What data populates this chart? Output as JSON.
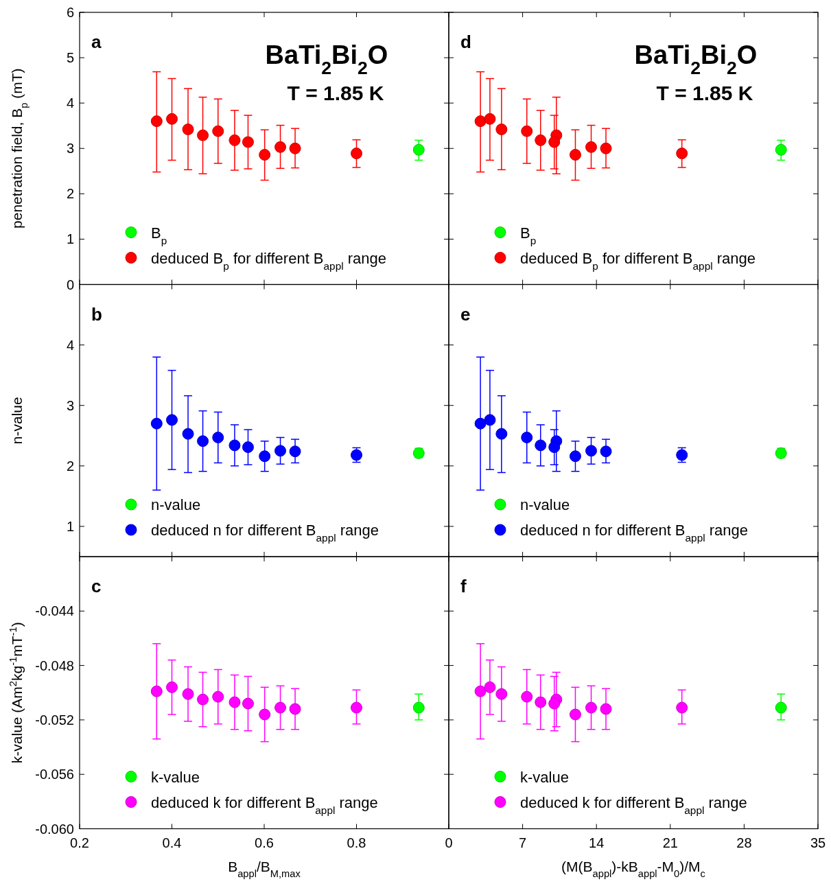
{
  "chart_data": [
    {
      "type": "scatter",
      "annotations": [
        "a",
        "BaTi$_{2}$Bi$_{2}$O",
        "T = 1.85 K"
      ],
      "ylabel": "penetration field,  B$_{p}$ (mT)",
      "xlim": [
        0.2,
        1.0
      ],
      "xticks": [
        0.2,
        0.4,
        0.6,
        0.8
      ],
      "ylim": [
        0,
        6
      ],
      "yticks": [
        0,
        1,
        2,
        3,
        4,
        5,
        6
      ],
      "tick_labels": "y",
      "legend": "bottom left",
      "marker": "circle",
      "series": [
        {
          "name": "B$_{p}$",
          "color": "#00ff00",
          "x": [
            0.935
          ],
          "values": [
            2.97
          ],
          "errors": [
            [
              2.74,
              3.18
            ]
          ]
        },
        {
          "name": "deduced B$_{p}$ for different B$_{appl}$ range",
          "color": "#ff0000",
          "x": [
            0.367,
            0.4,
            0.435,
            0.467,
            0.5,
            0.536,
            0.565,
            0.601,
            0.635,
            0.667,
            0.8
          ],
          "values": [
            3.6,
            3.65,
            3.42,
            3.29,
            3.38,
            3.18,
            3.14,
            2.86,
            3.03,
            3.0,
            2.89
          ],
          "errors": [
            [
              2.48,
              4.69
            ],
            [
              2.74,
              4.54
            ],
            [
              2.53,
              4.32
            ],
            [
              2.44,
              4.13
            ],
            [
              2.67,
              4.09
            ],
            [
              2.52,
              3.84
            ],
            [
              2.55,
              3.73
            ],
            [
              2.3,
              3.41
            ],
            [
              2.56,
              3.51
            ],
            [
              2.57,
              3.44
            ],
            [
              2.58,
              3.19
            ]
          ]
        }
      ]
    },
    {
      "type": "scatter",
      "annotations": [
        "d",
        "BaTi$_{2}$Bi$_{2}$O",
        "T = 1.85 K"
      ],
      "xlim": [
        0,
        35
      ],
      "xticks": [
        0,
        7,
        14,
        21,
        28,
        35
      ],
      "ylim": [
        0,
        6
      ],
      "yticks": [
        0,
        1,
        2,
        3,
        4,
        5,
        6
      ],
      "tick_labels": false,
      "legend": "bottom left",
      "marker": "circle",
      "series": [
        {
          "name": "B$_{p}$",
          "color": "#00ff00",
          "x": [
            31.5
          ],
          "values": [
            2.97
          ],
          "errors": [
            [
              2.74,
              3.18
            ]
          ]
        },
        {
          "name": "deduced B$_{p}$ for different B$_{appl}$ range",
          "color": "#ff0000",
          "x": [
            3.0,
            3.9,
            5.0,
            10.2,
            7.4,
            8.7,
            10.0,
            12.0,
            13.5,
            14.9,
            22.1
          ],
          "values": [
            3.6,
            3.65,
            3.42,
            3.29,
            3.38,
            3.18,
            3.14,
            2.86,
            3.03,
            3.0,
            2.89
          ],
          "errors": [
            [
              2.48,
              4.69
            ],
            [
              2.74,
              4.54
            ],
            [
              2.53,
              4.32
            ],
            [
              2.44,
              4.13
            ],
            [
              2.67,
              4.09
            ],
            [
              2.52,
              3.84
            ],
            [
              2.55,
              3.73
            ],
            [
              2.3,
              3.41
            ],
            [
              2.56,
              3.51
            ],
            [
              2.57,
              3.44
            ],
            [
              2.58,
              3.19
            ]
          ]
        }
      ]
    },
    {
      "type": "scatter",
      "annotations": [
        "b"
      ],
      "ylabel": "n-value",
      "xlim": [
        0.2,
        1.0
      ],
      "xticks": [
        0.2,
        0.4,
        0.6,
        0.8
      ],
      "ylim": [
        0.5,
        5
      ],
      "yticks": [
        1,
        2,
        3,
        4
      ],
      "tick_labels": "y",
      "legend": "bottom left",
      "marker": "circle",
      "series": [
        {
          "name": "n-value",
          "color": "#00ff00",
          "x": [
            0.935
          ],
          "values": [
            2.21
          ],
          "errors": [
            [
              2.14,
              2.29
            ]
          ]
        },
        {
          "name": "deduced n for different B$_{appl}$ range",
          "color": "#0000ff",
          "x": [
            0.367,
            0.4,
            0.435,
            0.467,
            0.5,
            0.536,
            0.565,
            0.601,
            0.635,
            0.667,
            0.8
          ],
          "values": [
            2.7,
            2.76,
            2.53,
            2.41,
            2.47,
            2.34,
            2.31,
            2.16,
            2.25,
            2.24,
            2.18
          ],
          "errors": [
            [
              1.6,
              3.8
            ],
            [
              1.94,
              3.58
            ],
            [
              1.89,
              3.16
            ],
            [
              1.91,
              2.91
            ],
            [
              2.05,
              2.89
            ],
            [
              2.0,
              2.68
            ],
            [
              2.02,
              2.6
            ],
            [
              1.91,
              2.41
            ],
            [
              2.03,
              2.47
            ],
            [
              2.05,
              2.44
            ],
            [
              2.06,
              2.3
            ]
          ]
        }
      ]
    },
    {
      "type": "scatter",
      "annotations": [
        "e"
      ],
      "xlim": [
        0,
        35
      ],
      "xticks": [
        0,
        7,
        14,
        21,
        28,
        35
      ],
      "ylim": [
        0.5,
        5
      ],
      "yticks": [
        1,
        2,
        3,
        4
      ],
      "tick_labels": false,
      "legend": "bottom left",
      "marker": "circle",
      "series": [
        {
          "name": "n-value",
          "color": "#00ff00",
          "x": [
            31.5
          ],
          "values": [
            2.21
          ],
          "errors": [
            [
              2.14,
              2.29
            ]
          ]
        },
        {
          "name": "deduced n for different B$_{appl}$ range",
          "color": "#0000ff",
          "x": [
            3.0,
            3.9,
            5.0,
            10.2,
            7.4,
            8.7,
            10.0,
            12.0,
            13.5,
            14.9,
            22.1
          ],
          "values": [
            2.7,
            2.76,
            2.53,
            2.41,
            2.47,
            2.34,
            2.31,
            2.16,
            2.25,
            2.24,
            2.18
          ],
          "errors": [
            [
              1.6,
              3.8
            ],
            [
              1.94,
              3.58
            ],
            [
              1.89,
              3.16
            ],
            [
              1.91,
              2.91
            ],
            [
              2.05,
              2.89
            ],
            [
              2.0,
              2.68
            ],
            [
              2.02,
              2.6
            ],
            [
              1.91,
              2.41
            ],
            [
              2.03,
              2.47
            ],
            [
              2.05,
              2.44
            ],
            [
              2.06,
              2.3
            ]
          ]
        }
      ]
    },
    {
      "type": "scatter",
      "annotations": [
        "c"
      ],
      "ylabel": "k-value (Am$^{2}$kg$^{-1}$mT$^{-1}$)",
      "xlabel": "B$_{appl}$/B$_{M,max}$",
      "xlim": [
        0.2,
        1.0
      ],
      "xticks": [
        0.2,
        0.4,
        0.6,
        0.8
      ],
      "ylim": [
        -0.06,
        -0.04
      ],
      "yticks": [
        {
          "value": -0.06,
          "label": "-0.060"
        },
        -0.056,
        -0.052,
        -0.048,
        -0.044
      ],
      "legend": "bottom left",
      "marker": "circle",
      "series": [
        {
          "name": "k-value",
          "color": "#00ff00",
          "x": [
            0.935
          ],
          "values": [
            -0.0511
          ],
          "errors": [
            [
              -0.052,
              -0.0501
            ]
          ]
        },
        {
          "name": "deduced k for different B$_{appl}$ range",
          "color": "#ff00ff",
          "x": [
            0.367,
            0.4,
            0.435,
            0.467,
            0.5,
            0.536,
            0.565,
            0.601,
            0.635,
            0.667,
            0.8
          ],
          "values": [
            -0.0499,
            -0.0496,
            -0.0501,
            -0.0505,
            -0.0503,
            -0.0507,
            -0.0508,
            -0.0516,
            -0.0511,
            -0.0512,
            -0.0511
          ],
          "errors": [
            [
              -0.0534,
              -0.0464
            ],
            [
              -0.0516,
              -0.0476
            ],
            [
              -0.0521,
              -0.0481
            ],
            [
              -0.0525,
              -0.0485
            ],
            [
              -0.0523,
              -0.0483
            ],
            [
              -0.0527,
              -0.0487
            ],
            [
              -0.0528,
              -0.0488
            ],
            [
              -0.0536,
              -0.0496
            ],
            [
              -0.0527,
              -0.0495
            ],
            [
              -0.0527,
              -0.0497
            ],
            [
              -0.0523,
              -0.0498
            ]
          ]
        }
      ]
    },
    {
      "type": "scatter",
      "annotations": [
        "f"
      ],
      "xlabel": "(M(B$_{appl}$)-kB$_{appl}$-M$_{0}$)/M$_{c}$",
      "xlim": [
        0,
        35
      ],
      "xticks": [
        0,
        7,
        14,
        21,
        28,
        35
      ],
      "ylim": [
        -0.06,
        -0.04
      ],
      "yticks": [
        -0.06,
        -0.056,
        -0.052,
        -0.048,
        -0.044
      ],
      "tick_labels": "x",
      "legend": "bottom left",
      "marker": "circle",
      "series": [
        {
          "name": "k-value",
          "color": "#00ff00",
          "x": [
            31.5
          ],
          "values": [
            -0.0511
          ],
          "errors": [
            [
              -0.052,
              -0.0501
            ]
          ]
        },
        {
          "name": "deduced k for different B$_{appl}$ range",
          "color": "#ff00ff",
          "x": [
            3.0,
            3.9,
            5.0,
            10.2,
            7.4,
            8.7,
            10.0,
            12.0,
            13.5,
            14.9,
            22.1
          ],
          "values": [
            -0.0499,
            -0.0496,
            -0.0501,
            -0.0505,
            -0.0503,
            -0.0507,
            -0.0508,
            -0.0516,
            -0.0511,
            -0.0512,
            -0.0511
          ],
          "errors": [
            [
              -0.0534,
              -0.0464
            ],
            [
              -0.0516,
              -0.0476
            ],
            [
              -0.0521,
              -0.0481
            ],
            [
              -0.0525,
              -0.0485
            ],
            [
              -0.0523,
              -0.0483
            ],
            [
              -0.0527,
              -0.0487
            ],
            [
              -0.0528,
              -0.0488
            ],
            [
              -0.0536,
              -0.0496
            ],
            [
              -0.0527,
              -0.0495
            ],
            [
              -0.0527,
              -0.0497
            ],
            [
              -0.0523,
              -0.0498
            ]
          ]
        }
      ]
    }
  ]
}
